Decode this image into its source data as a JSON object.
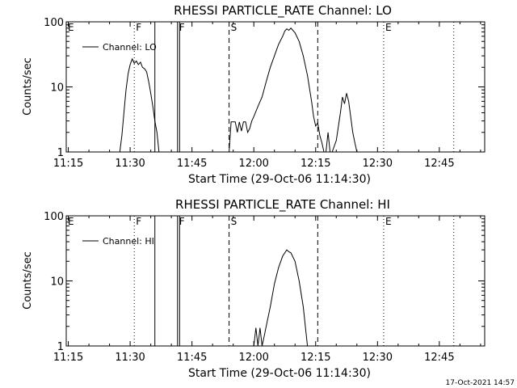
{
  "footer_stamp": "17-Oct-2021 14:57",
  "chart_data": [
    {
      "type": "line",
      "title": "RHESSI PARTICLE_RATE Channel: LO",
      "xlabel": "Start Time (29-Oct-06 11:14:30)",
      "ylabel": "Counts/sec",
      "yscale": "log",
      "ylim": [
        1,
        100
      ],
      "xlim": [
        "11:14:30",
        "12:56:00"
      ],
      "x_ticks": [
        "11:15",
        "11:30",
        "11:45",
        "12:00",
        "12:15",
        "12:30",
        "12:45"
      ],
      "y_ticks": [
        "1",
        "10",
        "100"
      ],
      "legend": {
        "label": "Channel: LO",
        "placement": "top-left"
      },
      "markers": [
        {
          "label": "E",
          "time": "11:14:30",
          "style": "dotted"
        },
        {
          "label": "F",
          "time": "11:31:00",
          "style": "dotted"
        },
        {
          "label": "",
          "time": "11:36:00",
          "style": "solid"
        },
        {
          "label": "F",
          "time": "11:41:30",
          "style": "solid"
        },
        {
          "label": "",
          "time": "11:42:00",
          "style": "solid"
        },
        {
          "label": "S",
          "time": "11:54:00",
          "style": "dashed"
        },
        {
          "label": "",
          "time": "12:15:30",
          "style": "dashed"
        },
        {
          "label": "E",
          "time": "12:31:30",
          "style": "dotted"
        },
        {
          "label": "",
          "time": "12:48:30",
          "style": "dotted"
        }
      ],
      "series": [
        {
          "values": [
            [
              "11:27:30",
              1
            ],
            [
              "11:28:00",
              1.8
            ],
            [
              "11:28:30",
              4
            ],
            [
              "11:29:00",
              9
            ],
            [
              "11:29:30",
              16
            ],
            [
              "11:30:00",
              22
            ],
            [
              "11:30:30",
              27
            ],
            [
              "11:31:00",
              23
            ],
            [
              "11:31:30",
              25
            ],
            [
              "11:32:00",
              22
            ],
            [
              "11:32:30",
              24
            ],
            [
              "11:33:00",
              20
            ],
            [
              "11:33:30",
              19
            ],
            [
              "11:34:00",
              17
            ],
            [
              "11:34:30",
              12
            ],
            [
              "11:35:00",
              8
            ],
            [
              "11:35:30",
              5
            ],
            [
              "11:36:00",
              3
            ],
            [
              "11:36:30",
              2
            ],
            [
              "11:37:00",
              1
            ],
            [
              "11:54:00",
              1
            ],
            [
              "11:54:30",
              2.9
            ],
            [
              "11:55:30",
              2.9
            ],
            [
              "11:56:00",
              2
            ],
            [
              "11:56:30",
              2.9
            ],
            [
              "11:57:00",
              2.1
            ],
            [
              "11:57:30",
              2.9
            ],
            [
              "11:58:00",
              2.9
            ],
            [
              "11:58:30",
              2
            ],
            [
              "11:59:00",
              2.3
            ],
            [
              "11:59:30",
              3
            ],
            [
              "12:00:00",
              3.5
            ],
            [
              "12:01:00",
              5
            ],
            [
              "12:02:00",
              7
            ],
            [
              "12:03:00",
              12
            ],
            [
              "12:04:00",
              20
            ],
            [
              "12:05:00",
              30
            ],
            [
              "12:06:00",
              45
            ],
            [
              "12:07:00",
              60
            ],
            [
              "12:07:30",
              72
            ],
            [
              "12:08:00",
              78
            ],
            [
              "12:08:30",
              74
            ],
            [
              "12:09:00",
              80
            ],
            [
              "12:10:00",
              68
            ],
            [
              "12:11:00",
              50
            ],
            [
              "12:12:00",
              30
            ],
            [
              "12:13:00",
              15
            ],
            [
              "12:14:00",
              6
            ],
            [
              "12:14:30",
              3.5
            ],
            [
              "12:15:00",
              2.5
            ],
            [
              "12:15:30",
              2.8
            ],
            [
              "12:16:00",
              1.8
            ],
            [
              "12:16:30",
              1.4
            ],
            [
              "12:17:00",
              1
            ],
            [
              "12:17:30",
              1
            ],
            [
              "12:18:00",
              2
            ],
            [
              "12:18:30",
              1
            ],
            [
              "12:19:00",
              1
            ],
            [
              "12:20:00",
              1.5
            ],
            [
              "12:21:00",
              4
            ],
            [
              "12:21:30",
              7
            ],
            [
              "12:22:00",
              5.5
            ],
            [
              "12:22:30",
              8
            ],
            [
              "12:23:00",
              6
            ],
            [
              "12:23:30",
              3.5
            ],
            [
              "12:24:00",
              2
            ],
            [
              "12:24:30",
              1.4
            ],
            [
              "12:25:00",
              1
            ]
          ]
        }
      ]
    },
    {
      "type": "line",
      "title": "RHESSI PARTICLE_RATE Channel: HI",
      "xlabel": "Start Time (29-Oct-06 11:14:30)",
      "ylabel": "Counts/sec",
      "yscale": "log",
      "ylim": [
        1,
        100
      ],
      "xlim": [
        "11:14:30",
        "12:56:00"
      ],
      "x_ticks": [
        "11:15",
        "11:30",
        "11:45",
        "12:00",
        "12:15",
        "12:30",
        "12:45"
      ],
      "y_ticks": [
        "1",
        "10",
        "100"
      ],
      "legend": {
        "label": "Channel: HI",
        "placement": "top-left"
      },
      "markers": [
        {
          "label": "E",
          "time": "11:14:30",
          "style": "dotted"
        },
        {
          "label": "F",
          "time": "11:31:00",
          "style": "dotted"
        },
        {
          "label": "",
          "time": "11:36:00",
          "style": "solid"
        },
        {
          "label": "F",
          "time": "11:41:30",
          "style": "solid"
        },
        {
          "label": "",
          "time": "11:42:00",
          "style": "solid"
        },
        {
          "label": "S",
          "time": "11:54:00",
          "style": "dashed"
        },
        {
          "label": "",
          "time": "12:15:30",
          "style": "dashed"
        },
        {
          "label": "E",
          "time": "12:31:30",
          "style": "dotted"
        },
        {
          "label": "",
          "time": "12:48:30",
          "style": "dotted"
        }
      ],
      "series": [
        {
          "values": [
            [
              "12:00:00",
              1
            ],
            [
              "12:00:30",
              1.9
            ],
            [
              "12:01:00",
              1
            ],
            [
              "12:01:30",
              1.9
            ],
            [
              "12:02:00",
              1
            ],
            [
              "12:02:30",
              1.4
            ],
            [
              "12:03:00",
              2
            ],
            [
              "12:04:00",
              4
            ],
            [
              "12:05:00",
              9
            ],
            [
              "12:06:00",
              16
            ],
            [
              "12:07:00",
              24
            ],
            [
              "12:08:00",
              30
            ],
            [
              "12:08:30",
              28
            ],
            [
              "12:09:00",
              27
            ],
            [
              "12:10:00",
              20
            ],
            [
              "12:11:00",
              10
            ],
            [
              "12:12:00",
              4
            ],
            [
              "12:12:30",
              2
            ],
            [
              "12:13:00",
              1
            ]
          ]
        }
      ]
    }
  ]
}
